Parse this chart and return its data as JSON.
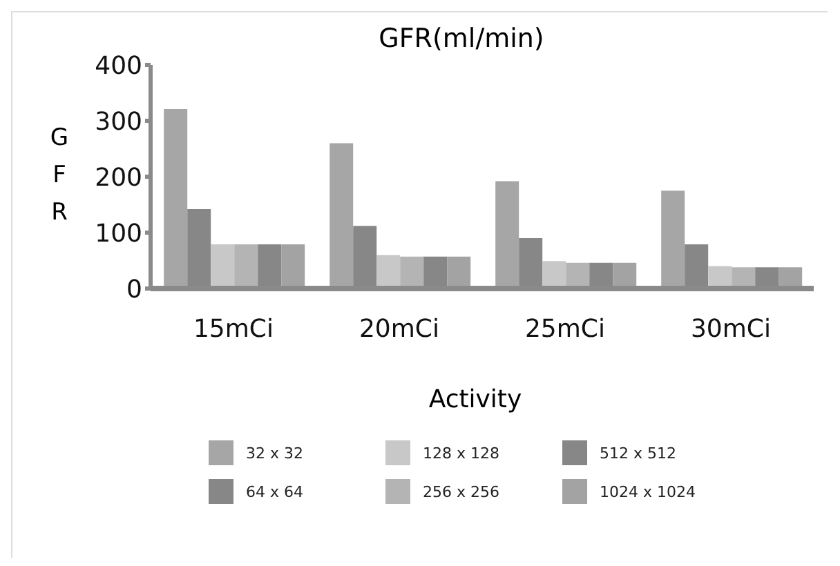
{
  "chart_data": {
    "type": "bar",
    "title": "GFR(ml/min)",
    "xlabel": "Activity",
    "ylabel": "GFR",
    "categories": [
      "15mCi",
      "20mCi",
      "25mCi",
      "30mCi"
    ],
    "series": [
      {
        "name": "32 x 32",
        "color": "#a6a6a6",
        "values": [
          321,
          260,
          192,
          175
        ]
      },
      {
        "name": "64 x 64",
        "color": "#878787",
        "values": [
          142,
          112,
          90,
          79
        ]
      },
      {
        "name": "128 x 128",
        "color": "#c8c8c8",
        "values": [
          79,
          60,
          49,
          40
        ]
      },
      {
        "name": "256 x 256",
        "color": "#b4b4b4",
        "values": [
          79,
          57,
          46,
          38
        ]
      },
      {
        "name": "512 x 512",
        "color": "#878787",
        "values": [
          79,
          57,
          46,
          38
        ]
      },
      {
        "name": "1024 x 1024",
        "color": "#a3a3a3",
        "values": [
          79,
          57,
          46,
          38
        ]
      }
    ],
    "ylim": [
      0,
      400
    ],
    "yticks": [
      0,
      100,
      200,
      300,
      400
    ],
    "grid": false,
    "legend": "bottom"
  }
}
